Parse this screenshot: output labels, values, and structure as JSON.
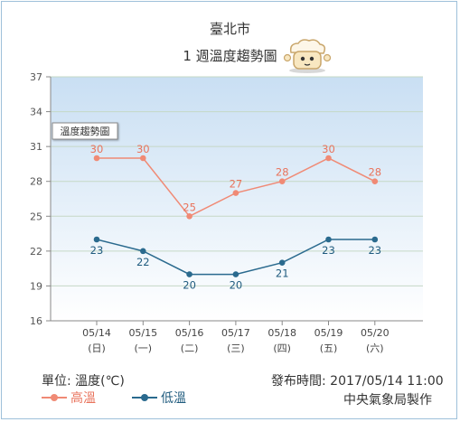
{
  "header": {
    "city": "臺北市",
    "subtitle": "1 週溫度趨勢圖",
    "mascot_icon": "weather-mascot-icon"
  },
  "footer": {
    "unit": "單位: 溫度(℃)",
    "published": "發布時間: 2017/05/14 11:00",
    "maker": "中央氣象局製作"
  },
  "chart_data": {
    "type": "line",
    "inset_label": "溫度趨勢圖",
    "categories": [
      "05/14",
      "05/15",
      "05/16",
      "05/17",
      "05/18",
      "05/19",
      "05/20"
    ],
    "weekdays": [
      "(日)",
      "(一)",
      "(二)",
      "(三)",
      "(四)",
      "(五)",
      "(六)"
    ],
    "ylim": [
      16,
      37
    ],
    "yticks": [
      16,
      19,
      22,
      25,
      28,
      31,
      34,
      37
    ],
    "grid": true,
    "legend_placement": "bottom-left",
    "series": [
      {
        "name": "高溫",
        "color": "#f08a75",
        "label_color": "#e9735c",
        "values": [
          30,
          30,
          25,
          27,
          28,
          30,
          28
        ]
      },
      {
        "name": "低溫",
        "color": "#2a6a8e",
        "label_color": "#1f5b7e",
        "values": [
          23,
          22,
          20,
          20,
          21,
          23,
          23
        ]
      }
    ],
    "colors": {
      "plot_top": "#c9dff3",
      "plot_bottom": "#ffffff",
      "grid": "#c5d8c6",
      "axis": "#888888"
    }
  }
}
